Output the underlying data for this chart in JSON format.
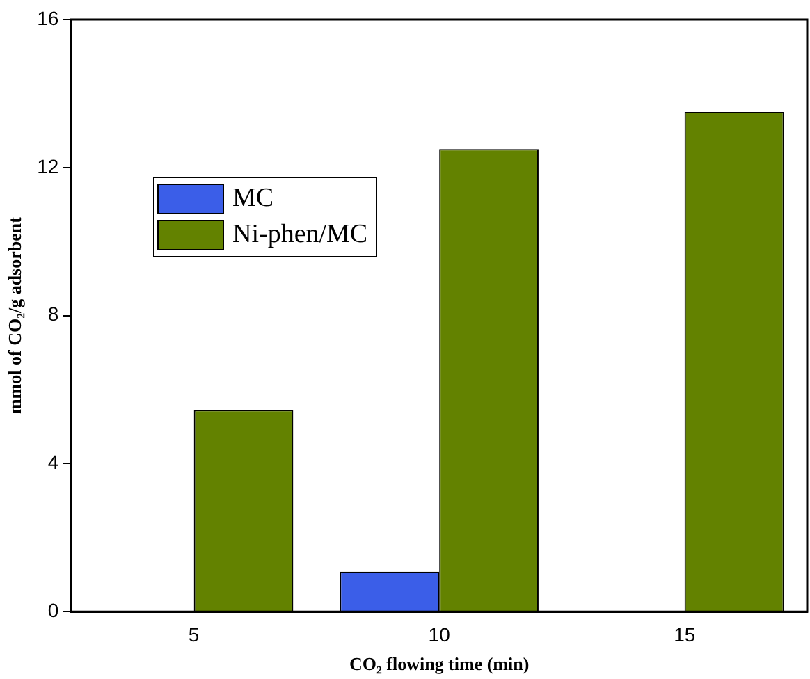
{
  "chart_data": {
    "type": "bar",
    "xlabel": "CO₂ flowing time (min)",
    "ylabel": "mmol of CO₂/g adsorbent",
    "categories": [
      "5",
      "10",
      "15"
    ],
    "series": [
      {
        "name": "MC",
        "color": "#3b5ee8",
        "values": [
          null,
          1.08,
          null
        ]
      },
      {
        "name": "Ni-phen/MC",
        "color": "#638200",
        "values": [
          5.45,
          12.5,
          13.5
        ]
      }
    ],
    "ylim": [
      0,
      16
    ],
    "yticks": [
      0,
      4,
      8,
      12,
      16
    ],
    "grid": false,
    "legend": "top left"
  }
}
